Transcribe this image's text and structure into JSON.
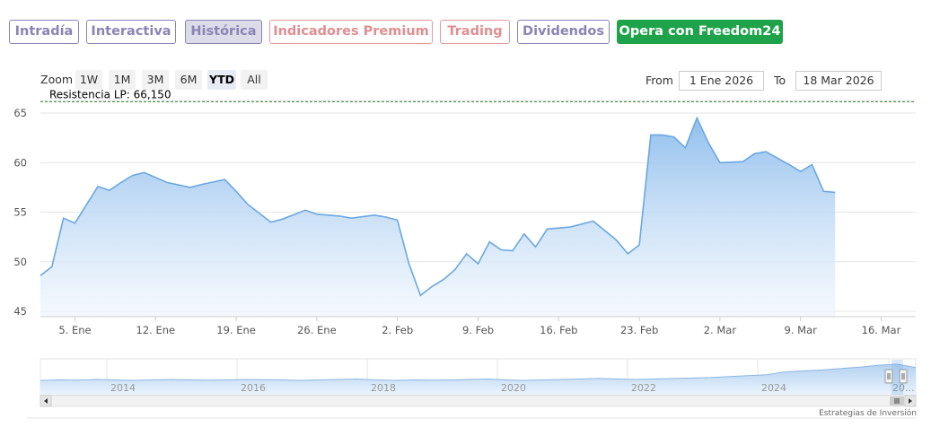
{
  "tabs": [
    {
      "label": "Intradía",
      "style": "purple"
    },
    {
      "label": "Interactiva",
      "style": "purple"
    },
    {
      "label": "Histórica",
      "style": "selected"
    },
    {
      "label": "Indicadores Premium",
      "style": "red"
    },
    {
      "label": "Trading",
      "style": "red"
    },
    {
      "label": "Dividendos",
      "style": "purple"
    },
    {
      "label": "Opera con Freedom24",
      "style": "green"
    }
  ],
  "zoom": {
    "label": "Zoom",
    "buttons": [
      "1W",
      "1M",
      "3M",
      "6M",
      "YTD",
      "All"
    ],
    "active": "YTD"
  },
  "range": {
    "from_label": "From",
    "from_value": "1 Ene 2026",
    "to_label": "To",
    "to_value": "18 Mar 2026"
  },
  "credit": "Estrategias de Inversión",
  "colors": {
    "line": "#6aa8e0",
    "fill_top": "#8cbcec",
    "fill_bottom": "#eef5fd",
    "resistance": "#2e7d32"
  },
  "chart_data": {
    "type": "area",
    "title": "",
    "xlabel": "",
    "ylabel": "",
    "ylim": [
      45,
      66
    ],
    "y_ticks": [
      45,
      50,
      55,
      60,
      65
    ],
    "x_ticks": [
      {
        "label": "5. Ene",
        "date": "2026-01-05"
      },
      {
        "label": "12. Ene",
        "date": "2026-01-12"
      },
      {
        "label": "19. Ene",
        "date": "2026-01-19"
      },
      {
        "label": "26. Ene",
        "date": "2026-01-26"
      },
      {
        "label": "2. Feb",
        "date": "2026-02-02"
      },
      {
        "label": "9. Feb",
        "date": "2026-02-09"
      },
      {
        "label": "16. Feb",
        "date": "2026-02-16"
      },
      {
        "label": "23. Feb",
        "date": "2026-02-23"
      },
      {
        "label": "2. Mar",
        "date": "2026-03-02"
      },
      {
        "label": "9. Mar",
        "date": "2026-03-09"
      },
      {
        "label": "16. Mar",
        "date": "2026-03-16"
      }
    ],
    "x_range": [
      "2026-01-02",
      "2026-03-19"
    ],
    "grid": true,
    "annotations": [
      {
        "label": "Resistencia LP: 66,150",
        "value": 66.15,
        "style": "dashed"
      }
    ],
    "series": [
      {
        "values": [
          [
            "2026-01-02",
            48.6
          ],
          [
            "2026-01-03",
            49.5
          ],
          [
            "2026-01-04",
            54.4
          ],
          [
            "2026-01-05",
            53.9
          ],
          [
            "2026-01-07",
            57.6
          ],
          [
            "2026-01-08",
            57.2
          ],
          [
            "2026-01-09",
            58.0
          ],
          [
            "2026-01-10",
            58.7
          ],
          [
            "2026-01-11",
            59.0
          ],
          [
            "2026-01-13",
            58.0
          ],
          [
            "2026-01-15",
            57.5
          ],
          [
            "2026-01-16",
            57.8
          ],
          [
            "2026-01-18",
            58.3
          ],
          [
            "2026-01-19",
            57.1
          ],
          [
            "2026-01-20",
            55.8
          ],
          [
            "2026-01-22",
            54.0
          ],
          [
            "2026-01-23",
            54.3
          ],
          [
            "2026-01-25",
            55.2
          ],
          [
            "2026-01-26",
            54.8
          ],
          [
            "2026-01-27",
            54.7
          ],
          [
            "2026-01-28",
            54.6
          ],
          [
            "2026-01-29",
            54.4
          ],
          [
            "2026-01-31",
            54.7
          ],
          [
            "2026-02-01",
            54.5
          ],
          [
            "2026-02-02",
            54.2
          ],
          [
            "2026-02-03",
            49.8
          ],
          [
            "2026-02-04",
            46.6
          ],
          [
            "2026-02-05",
            47.5
          ],
          [
            "2026-02-06",
            48.2
          ],
          [
            "2026-02-07",
            49.2
          ],
          [
            "2026-02-08",
            50.8
          ],
          [
            "2026-02-09",
            49.8
          ],
          [
            "2026-02-10",
            52.0
          ],
          [
            "2026-02-11",
            51.2
          ],
          [
            "2026-02-12",
            51.1
          ],
          [
            "2026-02-13",
            52.8
          ],
          [
            "2026-02-14",
            51.5
          ],
          [
            "2026-02-15",
            53.3
          ],
          [
            "2026-02-17",
            53.5
          ],
          [
            "2026-02-19",
            54.1
          ],
          [
            "2026-02-21",
            52.2
          ],
          [
            "2026-02-22",
            50.8
          ],
          [
            "2026-02-23",
            51.7
          ],
          [
            "2026-02-24",
            62.8
          ],
          [
            "2026-02-25",
            62.8
          ],
          [
            "2026-02-26",
            62.6
          ],
          [
            "2026-02-27",
            61.5
          ],
          [
            "2026-02-28",
            64.5
          ],
          [
            "2026-03-01",
            62.0
          ],
          [
            "2026-03-02",
            60.0
          ],
          [
            "2026-03-04",
            60.1
          ],
          [
            "2026-03-05",
            60.9
          ],
          [
            "2026-03-06",
            61.1
          ],
          [
            "2026-03-08",
            59.8
          ],
          [
            "2026-03-09",
            59.1
          ],
          [
            "2026-03-10",
            59.8
          ],
          [
            "2026-03-11",
            57.1
          ],
          [
            "2026-03-12",
            57.0
          ]
        ]
      }
    ],
    "navigator": {
      "x_labels": [
        "2014",
        "2016",
        "2018",
        "2020",
        "2022",
        "2024",
        "20..."
      ],
      "values": [
        30,
        31,
        30.5,
        32,
        31,
        30,
        31,
        32,
        31,
        30.5,
        31,
        32,
        31.5,
        31,
        30,
        31,
        32,
        33,
        31,
        30,
        31,
        30.5,
        31,
        32,
        33,
        31,
        30,
        31,
        32,
        33,
        34,
        33,
        32,
        33,
        34,
        35,
        36,
        38,
        40,
        42,
        48,
        50,
        52,
        55,
        58,
        62,
        64,
        57
      ]
    }
  }
}
